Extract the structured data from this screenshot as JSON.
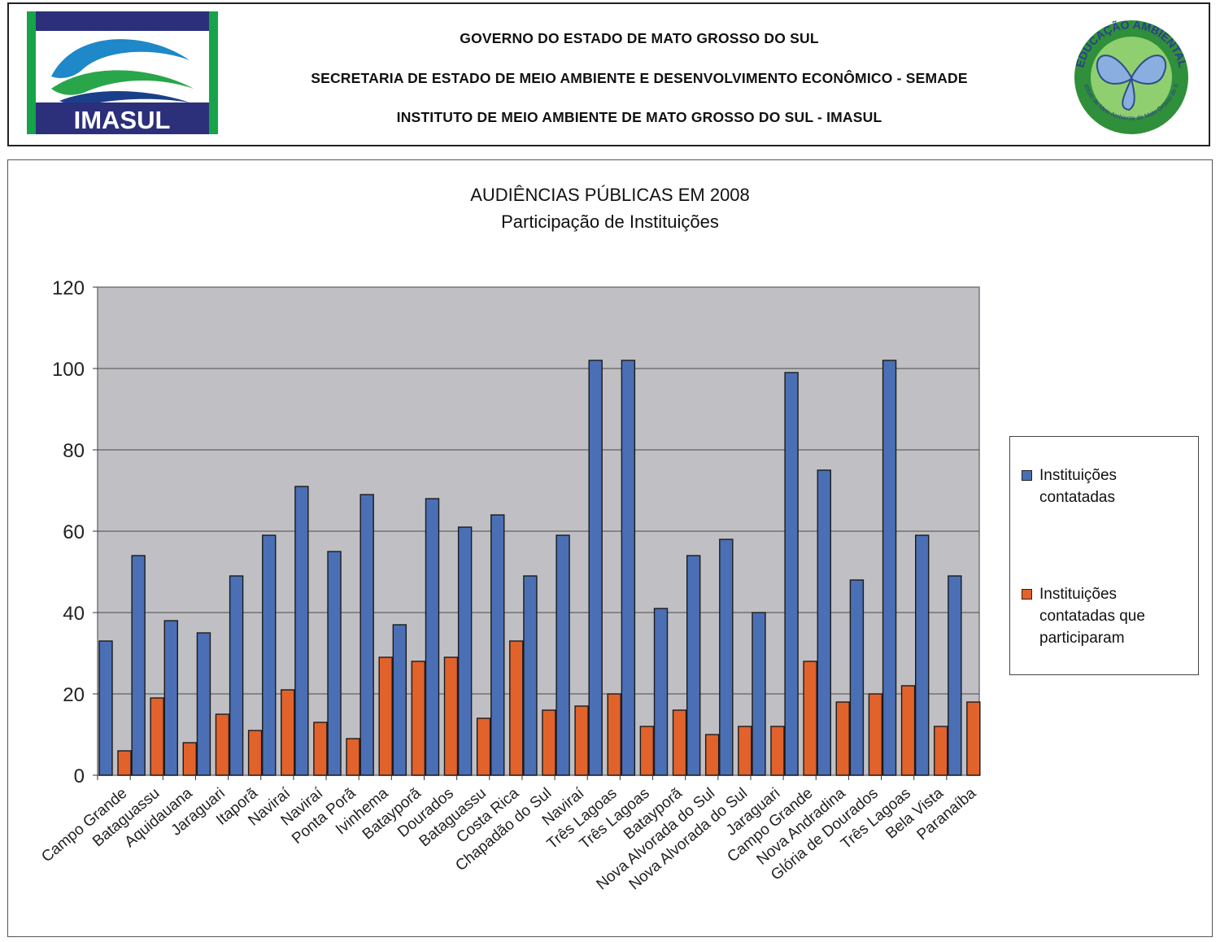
{
  "header": {
    "line1": "GOVERNO DO ESTADO DE MATO GROSSO DO SUL",
    "line2": "SECRETARIA DE ESTADO DE MEIO AMBIENTE E DESENVOLVIMENTO ECONÔMICO - SEMADE",
    "line3": "INSTITUTO DE MEIO AMBIENTE DE MATO GROSSO DO SUL - IMASUL",
    "logo_left_text": "IMASUL",
    "logo_right_top_text": "EDUCAÇÃO AMBIENTAL",
    "logo_right_bottom_text": "Instituto de Meio Ambiente de Mato Grosso do Sul"
  },
  "chart_data": {
    "type": "bar",
    "title": "AUDIÊNCIAS PÚBLICAS EM 2008",
    "subtitle": "Participação de Instituições",
    "categories": [
      "Campo Grande",
      "Bataguassu",
      "Aquidauana",
      "Jaraguari",
      "Itaporã",
      "Naviraí",
      "Naviraí",
      "Ponta Porã",
      "Ivinhema",
      "Batayporã",
      "Dourados",
      "Bataguassu",
      "Costa Rica",
      "Chapadão do Sul",
      "Naviraí",
      "Três Lagoas",
      "Três Lagoas",
      "Batayporã",
      "Nova Alvorada do Sul",
      "Nova Alvorada do Sul",
      "Jaraguari",
      "Campo Grande",
      "Nova Andradina",
      "Glória de Dourados",
      "Três Lagoas",
      "Bela Vista",
      "Paranaíba"
    ],
    "series": [
      {
        "name": "Instituições contatadas",
        "color": "#4a6fb5",
        "values": [
          33,
          54,
          38,
          35,
          49,
          59,
          71,
          55,
          69,
          37,
          68,
          61,
          64,
          49,
          59,
          102,
          102,
          41,
          54,
          58,
          40,
          99,
          75,
          48,
          102,
          59,
          49
        ]
      },
      {
        "name": "Instituições contatadas que participaram",
        "color": "#e2622b",
        "values": [
          6,
          19,
          8,
          15,
          11,
          21,
          13,
          9,
          29,
          28,
          29,
          14,
          33,
          16,
          17,
          20,
          12,
          16,
          10,
          12,
          12,
          28,
          18,
          20,
          22,
          12,
          18
        ]
      }
    ],
    "ylim": [
      0,
      120
    ],
    "yticks": [
      0,
      20,
      40,
      60,
      80,
      100,
      120
    ],
    "grid": true,
    "legend_position": "right",
    "plot_background": "#c0c0c4"
  }
}
